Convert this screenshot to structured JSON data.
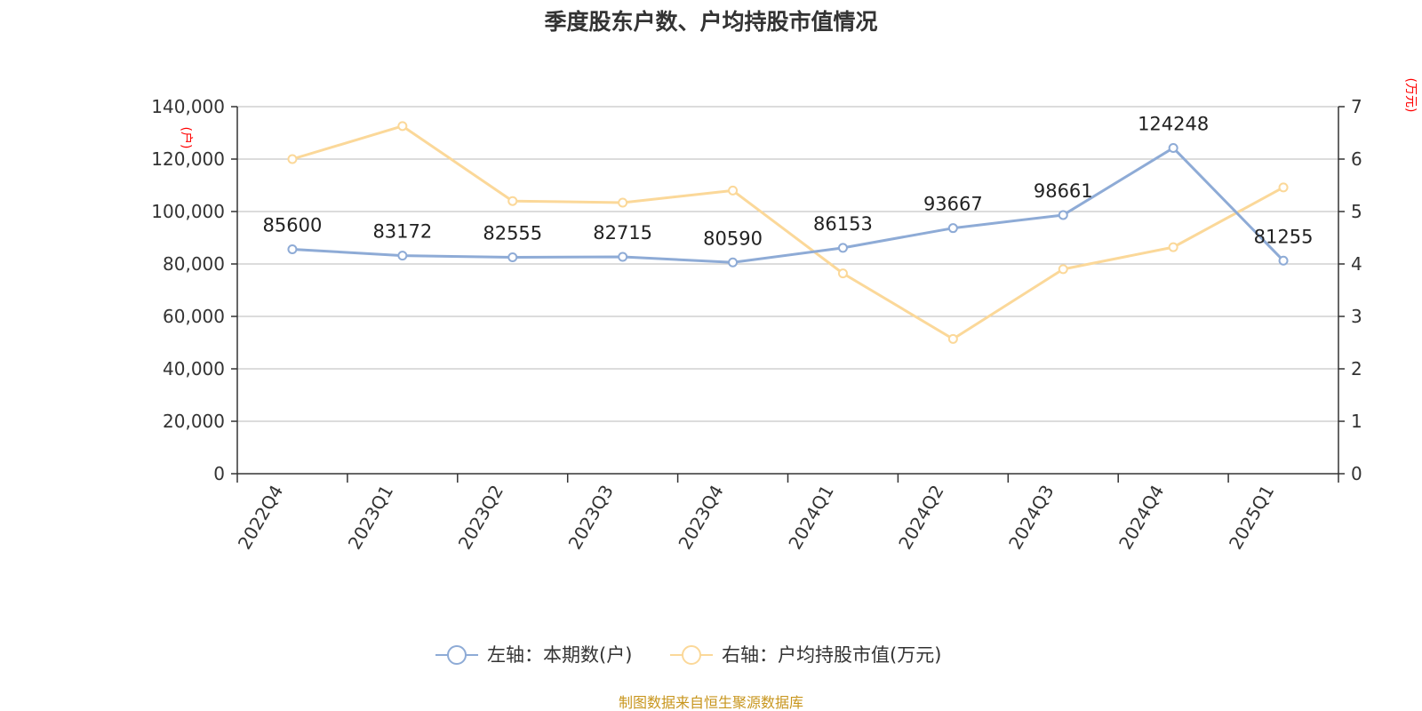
{
  "chart_data": {
    "type": "line",
    "title": "季度股东户数、户均持股市值情况",
    "categories": [
      "2022Q4",
      "2023Q1",
      "2023Q2",
      "2023Q3",
      "2023Q4",
      "2024Q1",
      "2024Q2",
      "2024Q3",
      "2024Q4",
      "2025Q1"
    ],
    "left_axis": {
      "unit": "(户)",
      "min": 0,
      "max": 140000,
      "ticks": [
        "0",
        "20,000",
        "40,000",
        "60,000",
        "80,000",
        "100,000",
        "120,000",
        "140,000"
      ],
      "tick_values": [
        0,
        20000,
        40000,
        60000,
        80000,
        100000,
        120000,
        140000
      ]
    },
    "right_axis": {
      "unit": "(万元)",
      "min": 0,
      "max": 7,
      "ticks": [
        "0",
        "1",
        "2",
        "3",
        "4",
        "5",
        "6",
        "7"
      ],
      "tick_values": [
        0,
        1,
        2,
        3,
        4,
        5,
        6,
        7
      ]
    },
    "series": [
      {
        "name": "左轴：本期数(户)",
        "axis": "left",
        "color": "#8eabd6",
        "values": [
          85600,
          83172,
          82555,
          82715,
          80590,
          86153,
          93667,
          98661,
          124248,
          81255
        ],
        "labels": [
          "85600",
          "83172",
          "82555",
          "82715",
          "80590",
          "86153",
          "93667",
          "98661",
          "124248",
          "81255"
        ]
      },
      {
        "name": "右轴：户均持股市值(万元)",
        "axis": "right",
        "color": "#fbd899",
        "values": [
          6.0,
          6.63,
          5.2,
          5.17,
          5.4,
          3.82,
          2.57,
          3.9,
          4.32,
          5.46
        ]
      }
    ],
    "grid": true,
    "legend_position": "bottom-center"
  },
  "source_text": "制图数据来自恒生聚源数据库"
}
